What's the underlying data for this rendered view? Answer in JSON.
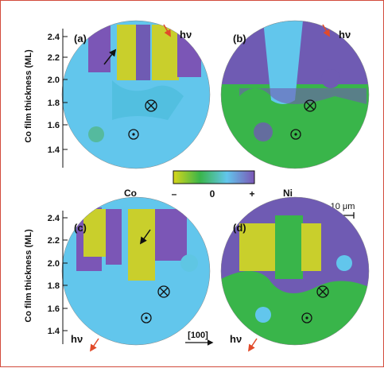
{
  "panels": [
    {
      "label": "(a)",
      "hv": "hν",
      "ylabel": "Co film thickness (ML)",
      "yticks": [
        "2.4",
        "2.2",
        "2.0",
        "1.8",
        "1.6",
        "1.4"
      ]
    },
    {
      "label": "(b)",
      "hv": "hν"
    },
    {
      "label": "(c)",
      "hv": "hν",
      "ylabel": "Co film thickness (ML)",
      "yticks": [
        "2.4",
        "2.2",
        "2.0",
        "1.8",
        "1.6",
        "1.4"
      ],
      "direction": "[100]"
    },
    {
      "label": "(d)",
      "hv": "hν"
    }
  ],
  "colorbar": {
    "left_label": "Co",
    "right_label": "Ni",
    "ticks": [
      "–",
      "0",
      "+"
    ],
    "colors": [
      "#d8d61a",
      "#39b54a",
      "#62c6ec",
      "#7b56b6"
    ]
  },
  "scalebar": {
    "label": "10 μm"
  },
  "colors": {
    "border": "#d24b3c",
    "arrow_red": "#e14a2a",
    "background": "#62c6ec",
    "green": "#39b54a",
    "purple": "#6f5bb3",
    "yellow": "#c9cf2c"
  }
}
